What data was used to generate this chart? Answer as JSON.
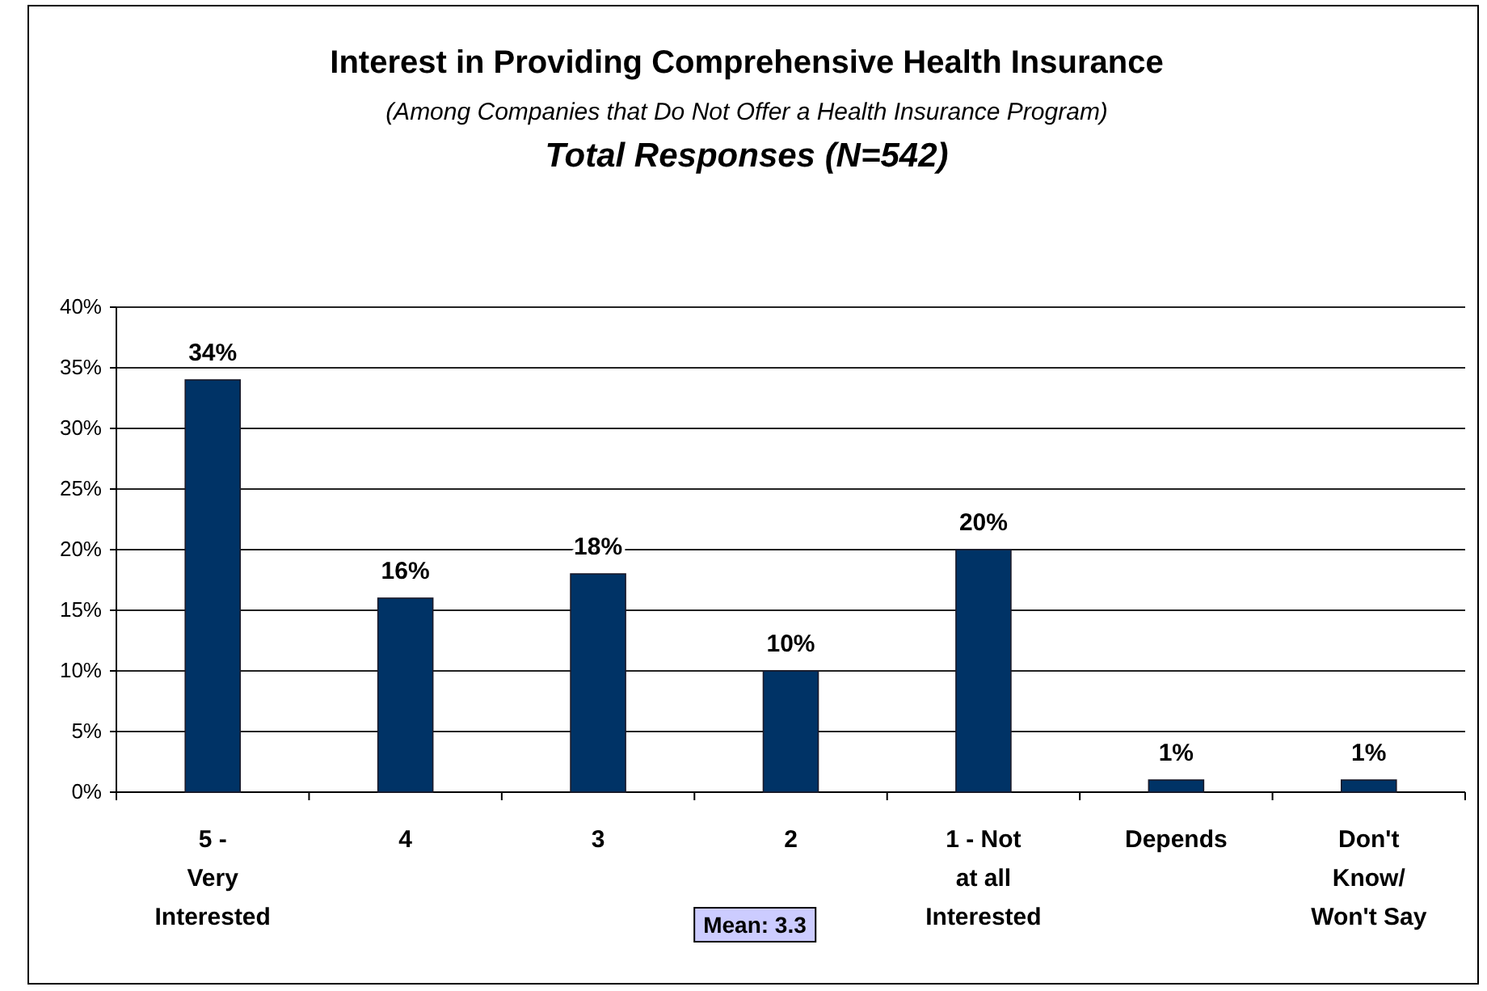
{
  "chart_data": {
    "type": "bar",
    "title": "Interest in Providing Comprehensive Health Insurance",
    "subtitle": "(Among Companies that Do Not Offer a Health Insurance Program)",
    "annotations": [
      "Total Responses (N=542)",
      "Mean: 3.3"
    ],
    "categories": [
      "5 -\nVery\nInterested",
      "4",
      "3",
      "2",
      "1 - Not\nat all\nInterested",
      "Depends",
      "Don't\nKnow/\nWon't Say"
    ],
    "values": [
      34,
      16,
      18,
      10,
      20,
      1,
      1
    ],
    "value_labels": [
      "34%",
      "16%",
      "18%",
      "10%",
      "20%",
      "1%",
      "1%"
    ],
    "color": "#003366",
    "ylim": [
      0,
      40
    ],
    "yticks": [
      {
        "value": 0,
        "label": "0%"
      },
      {
        "value": 5,
        "label": "5%"
      },
      {
        "value": 10,
        "label": "10%"
      },
      {
        "value": 15,
        "label": "15%"
      },
      {
        "value": 20,
        "label": "20%"
      },
      {
        "value": 25,
        "label": "25%"
      },
      {
        "value": 30,
        "label": "30%"
      },
      {
        "value": 35,
        "label": "35%"
      },
      {
        "value": 40,
        "label": "40%"
      }
    ],
    "grid": "y"
  }
}
